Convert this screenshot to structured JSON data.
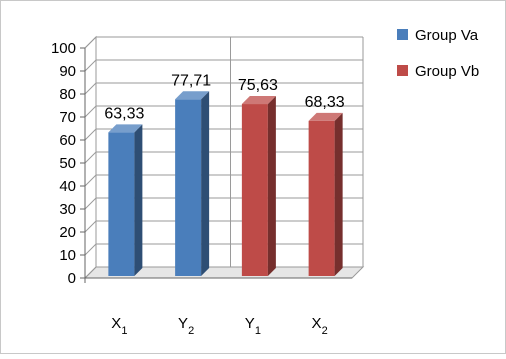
{
  "chart_data": {
    "type": "bar",
    "categories": [
      {
        "base": "X",
        "sub": "1"
      },
      {
        "base": "Y",
        "sub": "2"
      },
      {
        "base": "Y",
        "sub": "1"
      },
      {
        "base": "X",
        "sub": "2"
      }
    ],
    "values": [
      63.33,
      77.71,
      75.63,
      68.33
    ],
    "data_labels": [
      "63,33",
      "77,71",
      "75,63",
      "68,33"
    ],
    "series_of_bar": [
      0,
      0,
      1,
      1
    ],
    "series": [
      {
        "name": "Group Va",
        "color": "#4a7ebb"
      },
      {
        "name": "Group Vb",
        "color": "#be4b48"
      }
    ],
    "ylim": [
      0,
      100
    ],
    "ytick_step": 10,
    "grid": true,
    "legend_position": "top-right",
    "projection": "3d-clustered-column"
  }
}
